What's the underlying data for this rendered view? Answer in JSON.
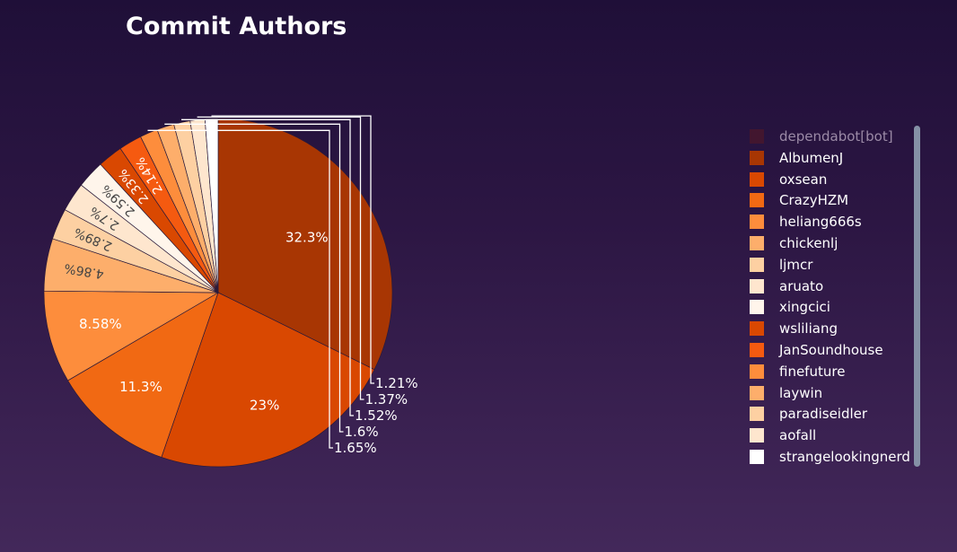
{
  "title": "Commit Authors",
  "chart_data": {
    "type": "pie",
    "title": "Commit Authors",
    "hidden_series": [
      "dependabot[bot]"
    ],
    "slices": [
      {
        "label": "AlbumenJ",
        "value": 32.3,
        "text": "32.3%",
        "color": "#a83603"
      },
      {
        "label": "oxsean",
        "value": 23.0,
        "text": "23%",
        "color": "#d94801"
      },
      {
        "label": "CrazyHZM",
        "value": 11.3,
        "text": "11.3%",
        "color": "#f16913"
      },
      {
        "label": "heliang666s",
        "value": 8.58,
        "text": "8.58%",
        "color": "#fd8d3c"
      },
      {
        "label": "chickenlj",
        "value": 4.86,
        "text": "4.86%",
        "color": "#fdae6b"
      },
      {
        "label": "ljmcr",
        "value": 2.89,
        "text": "2.89%",
        "color": "#fdd0a2"
      },
      {
        "label": "aruato",
        "value": 2.7,
        "text": "2.7%",
        "color": "#fee6ce"
      },
      {
        "label": "xingcici",
        "value": 2.59,
        "text": "2.59%",
        "color": "#fff5eb"
      },
      {
        "label": "wsliliang",
        "value": 2.33,
        "text": "2.33%",
        "color": "#d94801"
      },
      {
        "label": "JanSoundhouse",
        "value": 2.14,
        "text": "2.14%",
        "color": "#f55a10"
      },
      {
        "label": "finefuture",
        "value": 1.65,
        "text": "1.65%",
        "color": "#fd8d3c"
      },
      {
        "label": "laywin",
        "value": 1.6,
        "text": "1.6%",
        "color": "#fdae6b"
      },
      {
        "label": "paradiseidler",
        "value": 1.52,
        "text": "1.52%",
        "color": "#fdd0a2"
      },
      {
        "label": "aofall",
        "value": 1.37,
        "text": "1.37%",
        "color": "#fee6ce"
      },
      {
        "label": "strangelookingnerd",
        "value": 1.21,
        "text": "1.21%",
        "color": "#ffffff"
      }
    ]
  },
  "legend": {
    "items": [
      {
        "label": "dependabot[bot]",
        "color": "#5a1a22",
        "hidden": true
      },
      {
        "label": "AlbumenJ",
        "color": "#a83603"
      },
      {
        "label": "oxsean",
        "color": "#d94801"
      },
      {
        "label": "CrazyHZM",
        "color": "#f16913"
      },
      {
        "label": "heliang666s",
        "color": "#fd8d3c"
      },
      {
        "label": "chickenlj",
        "color": "#fdae6b"
      },
      {
        "label": "ljmcr",
        "color": "#fdd0a2"
      },
      {
        "label": "aruato",
        "color": "#fee6ce"
      },
      {
        "label": "xingcici",
        "color": "#fff5eb"
      },
      {
        "label": "wsliliang",
        "color": "#d94801"
      },
      {
        "label": "JanSoundhouse",
        "color": "#f55a10"
      },
      {
        "label": "finefuture",
        "color": "#fd8d3c"
      },
      {
        "label": "laywin",
        "color": "#fdae6b"
      },
      {
        "label": "paradiseidler",
        "color": "#fdd0a2"
      },
      {
        "label": "aofall",
        "color": "#fee6ce"
      },
      {
        "label": "strangelookingnerd",
        "color": "#ffffff"
      }
    ]
  }
}
